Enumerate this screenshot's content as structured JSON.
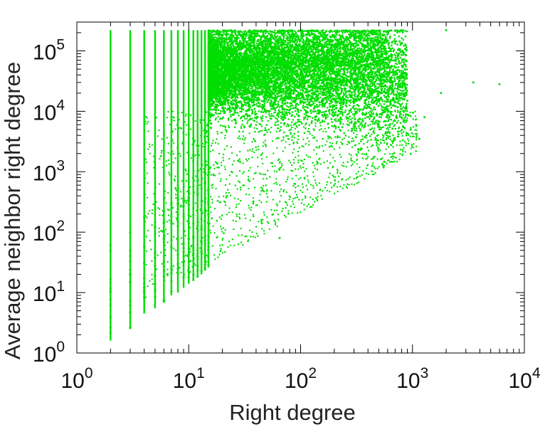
{
  "chart_data": {
    "type": "scatter",
    "title": "",
    "xlabel": "Right degree",
    "ylabel": "Average neighbor right degree",
    "xscale": "log",
    "yscale": "log",
    "xlim": [
      1,
      10000
    ],
    "ylim": [
      1,
      300000
    ],
    "grid": false,
    "legend": "none",
    "marker_color": "#00dd00",
    "x_ticks": [
      {
        "base": "10",
        "exp": "0"
      },
      {
        "base": "10",
        "exp": "1"
      },
      {
        "base": "10",
        "exp": "2"
      },
      {
        "base": "10",
        "exp": "3"
      },
      {
        "base": "10",
        "exp": "4"
      }
    ],
    "y_ticks": [
      {
        "base": "10",
        "exp": "0"
      },
      {
        "base": "10",
        "exp": "1"
      },
      {
        "base": "10",
        "exp": "2"
      },
      {
        "base": "10",
        "exp": "3"
      },
      {
        "base": "10",
        "exp": "4"
      },
      {
        "base": "10",
        "exp": "5"
      }
    ],
    "outlier_points": [
      [
        3500,
        30000
      ],
      [
        6000,
        28000
      ],
      [
        2000,
        220000
      ],
      [
        800,
        220000
      ],
      [
        1150,
        3500
      ],
      [
        1280,
        8000
      ],
      [
        1800,
        20000
      ],
      [
        900,
        15000
      ],
      [
        700,
        24000
      ],
      [
        480,
        40000
      ],
      [
        65,
        80
      ],
      [
        45,
        140
      ]
    ],
    "columns": [
      {
        "x": 2,
        "ymin": 1.6,
        "ymax": 220000
      },
      {
        "x": 3,
        "ymin": 2.5,
        "ymax": 220000
      },
      {
        "x": 4,
        "ymin": 4.5,
        "ymax": 220000
      },
      {
        "x": 5,
        "ymin": 5.5,
        "ymax": 220000
      },
      {
        "x": 6,
        "ymin": 7,
        "ymax": 220000
      },
      {
        "x": 7,
        "ymin": 9,
        "ymax": 220000
      },
      {
        "x": 8,
        "ymin": 10,
        "ymax": 220000
      },
      {
        "x": 9,
        "ymin": 12,
        "ymax": 220000
      },
      {
        "x": 10,
        "ymin": 14,
        "ymax": 220000
      },
      {
        "x": 11,
        "ymin": 16,
        "ymax": 220000
      },
      {
        "x": 12,
        "ymin": 18,
        "ymax": 220000
      },
      {
        "x": 13,
        "ymin": 20,
        "ymax": 220000
      },
      {
        "x": 14,
        "ymin": 23,
        "ymax": 220000
      },
      {
        "x": 15,
        "ymin": 26,
        "ymax": 220000
      }
    ],
    "dense_cloud": {
      "x_range": [
        15,
        900
      ],
      "upper_y": 220000,
      "center_y": 40000,
      "lower_edge_note": "y decreases from ~5000 at x=15 to ~3000 at x=1000"
    }
  }
}
